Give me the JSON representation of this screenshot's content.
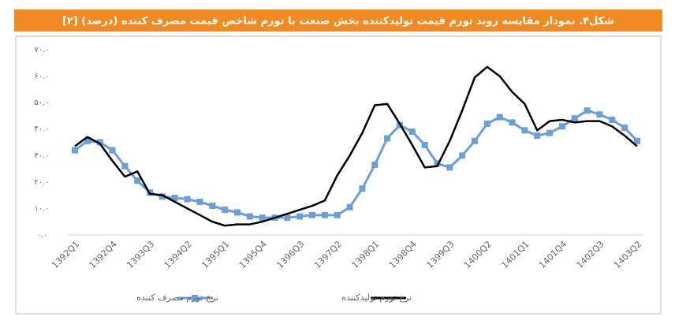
{
  "chart_data": {
    "type": "line",
    "title": "شکل۴. نمودار مقایسه روند تورم قیمت تولیدکننده بخش صنعت با تورم شاخص قیمت مصرف کننده (درصد) [۲]",
    "categories": [
      "1392Q1",
      null,
      null,
      "1392Q4",
      null,
      null,
      "1393Q3",
      null,
      null,
      "1394Q2",
      null,
      null,
      "1395Q1",
      null,
      null,
      "1395Q4",
      null,
      null,
      "1396Q3",
      null,
      null,
      "1397Q2",
      null,
      null,
      "1398Q1",
      null,
      null,
      "1398Q4",
      null,
      null,
      "1399Q3",
      null,
      null,
      "1400Q2",
      null,
      null,
      "1401Q1",
      null,
      null,
      "1401Q4",
      null,
      null,
      "1402Q3",
      null,
      null,
      "1403Q2"
    ],
    "series": [
      {
        "name": "نرخ تورم مصرف کننده",
        "color": "#6a9fd8",
        "marker": "square",
        "values": [
          32,
          35.5,
          35,
          32,
          26,
          20.5,
          16,
          14.5,
          14,
          13.5,
          12.5,
          11,
          9.5,
          8.5,
          7,
          6.5,
          6.5,
          6.5,
          7,
          7.5,
          7.5,
          7.5,
          10.5,
          17.5,
          26.5,
          36.5,
          41.5,
          39,
          34,
          27,
          25.5,
          30,
          35.5,
          42,
          44.5,
          42.5,
          39.5,
          37.5,
          38.5,
          41,
          44,
          47,
          45.5,
          43.5,
          40.5,
          35.5
        ]
      },
      {
        "name": "نرخ تورم تولیدکننده",
        "color": "#000000",
        "values": [
          33.5,
          37,
          34.5,
          28,
          22,
          24,
          15.5,
          15,
          12.5,
          10,
          7.5,
          5,
          3.5,
          4,
          4,
          5,
          6.5,
          8,
          9.5,
          11,
          13,
          22.5,
          30,
          38.5,
          49,
          49.5,
          42,
          34,
          25.5,
          26,
          35.5,
          47,
          59.5,
          63.5,
          60,
          54,
          49.5,
          39.5,
          43,
          43.5,
          42.5,
          43,
          43,
          41,
          37.5,
          33.5
        ]
      }
    ],
    "ylim": [
      0,
      70
    ],
    "yticks": [
      {
        "value": 0,
        "label": "۰.۰"
      },
      {
        "value": 10,
        "label": "۱۰.۰"
      },
      {
        "value": 20,
        "label": "۲۰.۰"
      },
      {
        "value": 30,
        "label": "۳۰.۰"
      },
      {
        "value": 40,
        "label": "۴۰.۰"
      },
      {
        "value": 50,
        "label": "۵۰.۰"
      },
      {
        "value": 60,
        "label": "۶۰.۰"
      },
      {
        "value": 70,
        "label": "۷۰.۰"
      }
    ],
    "grid": false,
    "legend": "bottom"
  }
}
